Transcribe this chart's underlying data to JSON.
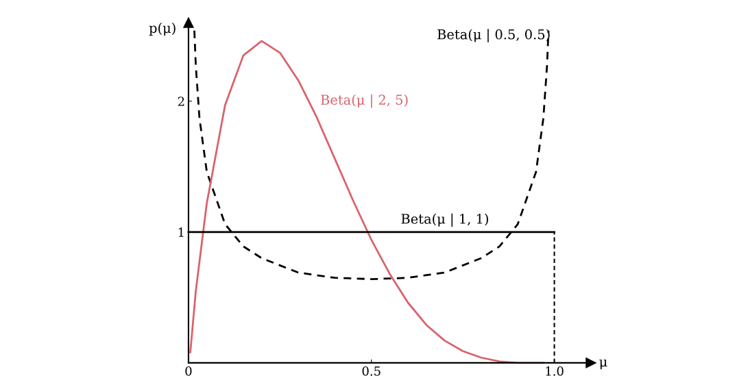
{
  "chart_data": {
    "type": "line",
    "xlabel": "μ",
    "ylabel": "p(μ)",
    "xlim": [
      0,
      1.1
    ],
    "ylim": [
      0,
      2.6
    ],
    "xticks": [
      0,
      0.5,
      {
        "value": 1.0,
        "label": "1.0"
      }
    ],
    "yticks": [
      1,
      2
    ],
    "series": [
      {
        "name": "Beta(μ | 0.5, 0.5)",
        "color": "#000000",
        "line_style": "dashed",
        "x": [
          0.016,
          0.02,
          0.03,
          0.05,
          0.1,
          0.15,
          0.2,
          0.3,
          0.4,
          0.5,
          0.6,
          0.7,
          0.8,
          0.85,
          0.9,
          0.95,
          0.97,
          0.98,
          0.984
        ],
        "values": [
          2.54,
          2.27,
          1.87,
          1.46,
          1.06,
          0.89,
          0.8,
          0.69,
          0.65,
          0.64,
          0.65,
          0.69,
          0.8,
          0.89,
          1.06,
          1.46,
          1.87,
          2.27,
          2.54
        ]
      },
      {
        "name": "Beta(μ | 2, 5)",
        "color": "#d9636b",
        "line_style": "solid",
        "x": [
          0.005,
          0.02,
          0.05,
          0.1,
          0.15,
          0.2,
          0.25,
          0.3,
          0.35,
          0.4,
          0.45,
          0.5,
          0.55,
          0.6,
          0.65,
          0.7,
          0.75,
          0.8,
          0.85,
          0.9,
          0.97
        ],
        "values": [
          0.08,
          0.55,
          1.22,
          1.97,
          2.35,
          2.46,
          2.37,
          2.16,
          1.88,
          1.56,
          1.24,
          0.94,
          0.68,
          0.46,
          0.29,
          0.17,
          0.09,
          0.04,
          0.01,
          0.0,
          0.0
        ]
      },
      {
        "name": "Beta(μ | 1, 1)",
        "color": "#000000",
        "line_style": "solid",
        "x": [
          0,
          1
        ],
        "values": [
          1,
          1
        ]
      }
    ],
    "ref_lines": [
      {
        "axis": "x",
        "value": 1,
        "color": "#000000",
        "line_style": "dotted"
      }
    ]
  }
}
